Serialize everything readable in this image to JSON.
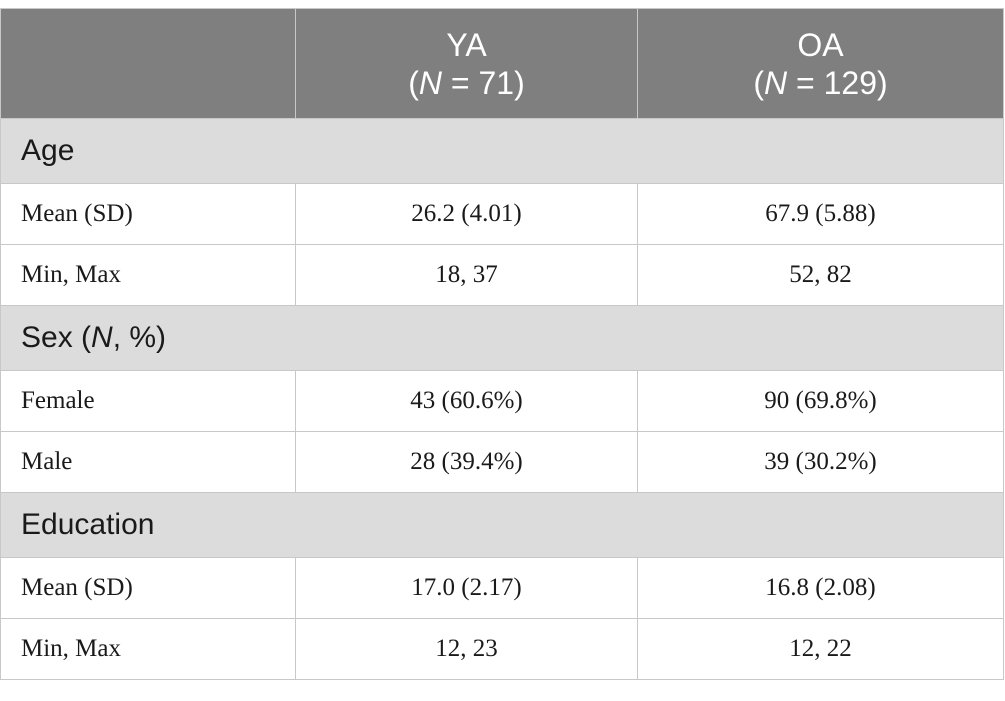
{
  "header": {
    "col1": "",
    "col2": {
      "name": "YA",
      "n_prefix": "(",
      "n_symbol": "N",
      "n_rest": " = 71)"
    },
    "col3": {
      "name": "OA",
      "n_prefix": "(",
      "n_symbol": "N",
      "n_rest": " = 129)"
    }
  },
  "sections": {
    "age": {
      "title": "Age",
      "rows": [
        {
          "label": "Mean (SD)",
          "ya": "26.2 (4.01)",
          "oa": "67.9 (5.88)"
        },
        {
          "label": "Min, Max",
          "ya": "18, 37",
          "oa": "52, 82"
        }
      ]
    },
    "sex": {
      "title_prefix": "Sex (",
      "title_symbol": "N",
      "title_rest": ", %)",
      "rows": [
        {
          "label": "Female",
          "ya": "43 (60.6%)",
          "oa": "90 (69.8%)"
        },
        {
          "label": "Male",
          "ya": "28 (39.4%)",
          "oa": "39 (30.2%)"
        }
      ]
    },
    "education": {
      "title": "Education",
      "rows": [
        {
          "label": "Mean (SD)",
          "ya": "17.0 (2.17)",
          "oa": "16.8 (2.08)"
        },
        {
          "label": "Min, Max",
          "ya": "12, 23",
          "oa": "12, 22"
        }
      ]
    }
  }
}
